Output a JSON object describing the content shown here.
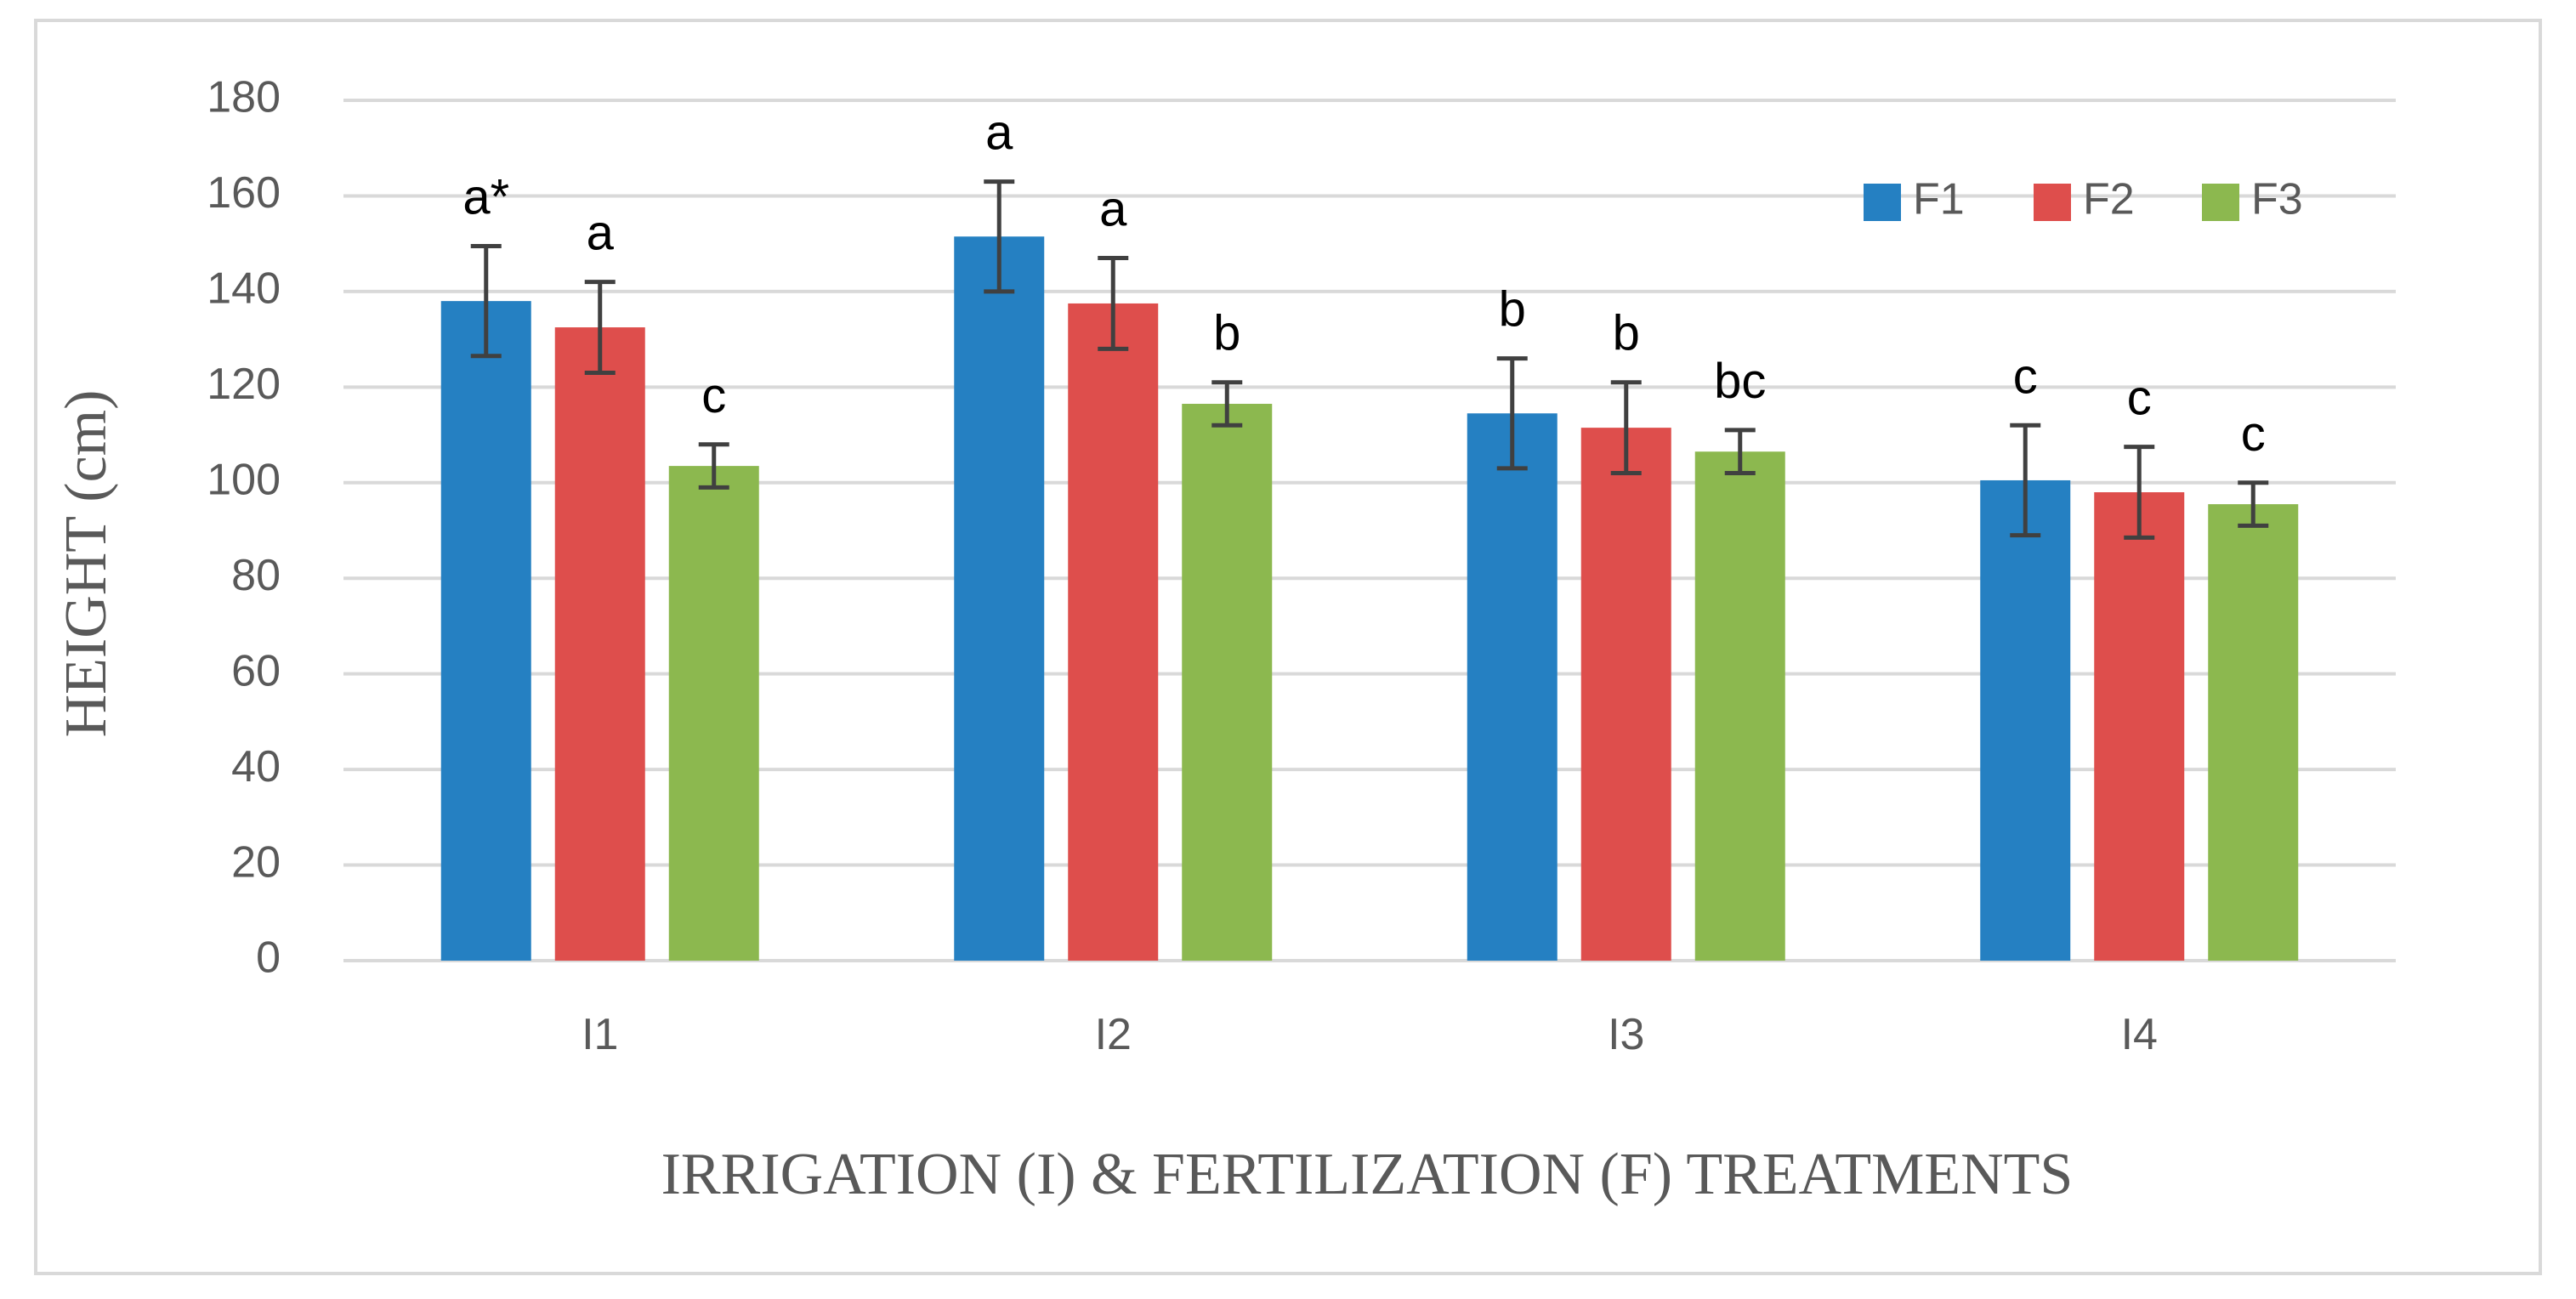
{
  "chart_data": {
    "type": "bar",
    "title": "",
    "xlabel": "IRRIGATION (I) & FERTILIZATION (F) TREATMENTS",
    "ylabel": "HEIGHT (cm)",
    "ylim": [
      0,
      180
    ],
    "yticks": [
      0,
      20,
      40,
      60,
      80,
      100,
      120,
      140,
      160,
      180
    ],
    "ytick_labels": [
      "0",
      "20",
      "40",
      "60",
      "80",
      "100",
      "120",
      "140",
      "160",
      "180"
    ],
    "grid": true,
    "legend_position": "top-right",
    "categories": [
      "I1",
      "I2",
      "I3",
      "I4"
    ],
    "series": [
      {
        "name": "F1",
        "color": "#2580c2",
        "values": [
          138,
          151.5,
          114.5,
          100.5
        ],
        "errors": [
          11.5,
          11.5,
          11.5,
          11.5
        ],
        "labels": [
          "a*",
          "a",
          "b",
          "c"
        ]
      },
      {
        "name": "F2",
        "color": "#de4e4c",
        "values": [
          132.5,
          137.5,
          111.5,
          98
        ],
        "errors": [
          9.5,
          9.5,
          9.5,
          9.5
        ],
        "labels": [
          "a",
          "a",
          "b",
          "c"
        ]
      },
      {
        "name": "F3",
        "color": "#8cb84f",
        "values": [
          103.5,
          116.5,
          106.5,
          95.5
        ],
        "errors": [
          4.5,
          4.5,
          4.5,
          4.5
        ],
        "labels": [
          "c",
          "b",
          "bc",
          "c"
        ]
      }
    ]
  },
  "colors": {
    "frame": "#d9d9d9",
    "gridline": "#d9d9d9",
    "axis_text": "#595959",
    "error_bar": "#404040",
    "annotation_text": "#000000"
  }
}
